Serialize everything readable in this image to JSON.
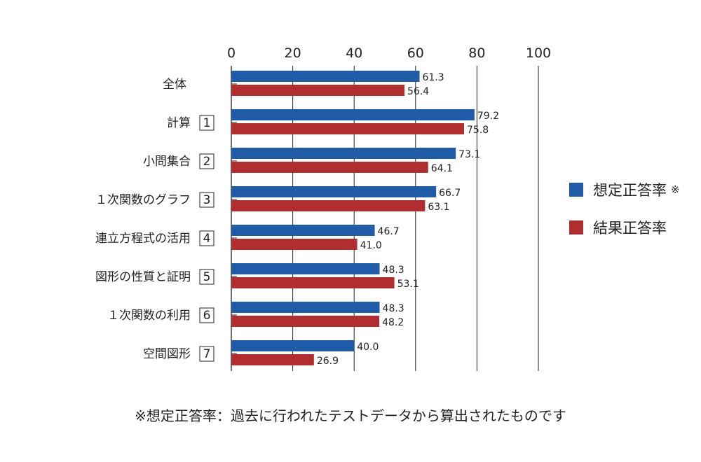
{
  "chart_data": {
    "type": "bar",
    "orientation": "horizontal",
    "axis_ticks": [
      "0",
      "20",
      "40",
      "60",
      "80",
      "100"
    ],
    "xlim": [
      0,
      100
    ],
    "categories": [
      {
        "label": "全体",
        "num": ""
      },
      {
        "label": "計算",
        "num": "1"
      },
      {
        "label": "小問集合",
        "num": "2"
      },
      {
        "label": "１次関数のグラフ",
        "num": "3"
      },
      {
        "label": "連立方程式の活用",
        "num": "4"
      },
      {
        "label": "図形の性質と証明",
        "num": "5"
      },
      {
        "label": "１次関数の利用",
        "num": "6"
      },
      {
        "label": "空間図形",
        "num": "7"
      }
    ],
    "series": [
      {
        "name": "想定正答率",
        "note": "※",
        "color": "#1f5ba6",
        "values": [
          61.3,
          79.2,
          73.1,
          66.7,
          46.7,
          48.3,
          48.3,
          40.0
        ],
        "labels": [
          "61.3",
          "79.2",
          "73.1",
          "66.7",
          "46.7",
          "48.3",
          "48.3",
          "40.0"
        ]
      },
      {
        "name": "結果正答率",
        "note": "",
        "color": "#b02e30",
        "values": [
          56.4,
          75.8,
          64.1,
          63.1,
          41.0,
          53.1,
          48.2,
          26.9
        ],
        "labels": [
          "56.4",
          "75.8",
          "64.1",
          "63.1",
          "41.0",
          "53.1",
          "48.2",
          "26.9"
        ]
      }
    ]
  },
  "footnote": "※想定正答率：過去に行われたテストデータから算出されたものです"
}
